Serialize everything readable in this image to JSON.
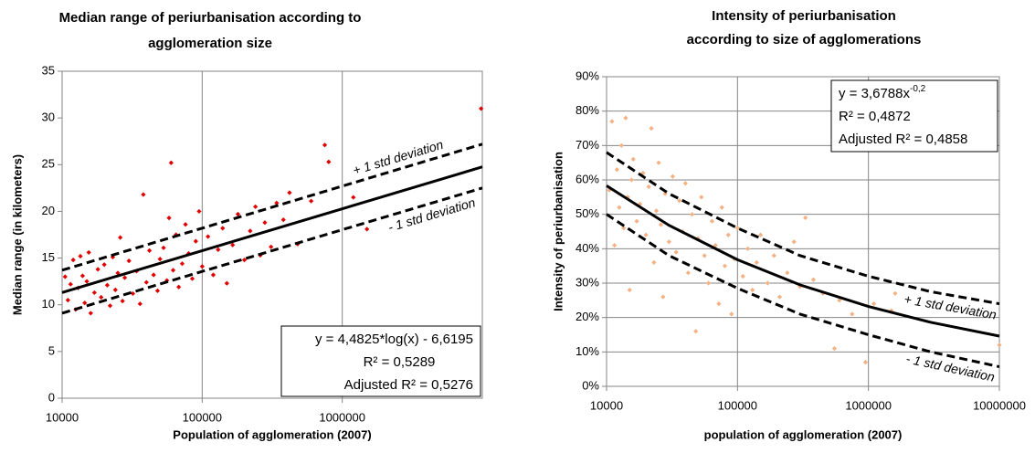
{
  "chart_data": [
    {
      "type": "scatter",
      "title": [
        "Median range of periurbanisation according to",
        "agglomeration size"
      ],
      "x_label": "Population of agglomeration (2007)",
      "y_label": "Median range (in kilometers)",
      "xscale": "log",
      "xlim": [
        10000,
        10000000
      ],
      "xticks": [
        10000,
        100000,
        1000000
      ],
      "ylim": [
        0,
        35
      ],
      "yticks": [
        0,
        5,
        10,
        15,
        20,
        25,
        30,
        35
      ],
      "xgrid": true,
      "ygrid": false,
      "equation": {
        "lines": [
          "y = 4,4825*log(x) - 6,6195",
          "R² = 0,5289",
          "Adjusted R² = 0,5276"
        ]
      },
      "series": [
        {
          "style": "points",
          "color": "#e00000",
          "x": [
            10500,
            11000,
            11500,
            12000,
            12500,
            13000,
            13500,
            14000,
            14500,
            15000,
            15500,
            16000,
            17000,
            18000,
            19000,
            20000,
            21000,
            22000,
            23000,
            24000,
            25000,
            26000,
            27000,
            28000,
            30000,
            32000,
            34000,
            36000,
            38000,
            40000,
            42000,
            45000,
            48000,
            50000,
            53000,
            56000,
            58000,
            60000,
            62000,
            65000,
            68000,
            72000,
            76000,
            80000,
            85000,
            90000,
            95000,
            100000,
            110000,
            120000,
            130000,
            140000,
            150000,
            165000,
            180000,
            200000,
            220000,
            240000,
            260000,
            280000,
            310000,
            340000,
            380000,
            420000,
            480000,
            600000,
            750000,
            800000,
            1200000,
            1500000,
            9800000
          ],
          "values": [
            13,
            10.5,
            12.2,
            14.8,
            9.5,
            11.8,
            15.2,
            13.1,
            10.2,
            12.5,
            15.6,
            9.1,
            11.3,
            13.8,
            10.8,
            14.3,
            12.1,
            9.9,
            15.1,
            11.6,
            13.4,
            17.2,
            10.4,
            12.9,
            14.7,
            11.2,
            13.6,
            10.1,
            21.8,
            12.4,
            15.8,
            13.2,
            11.5,
            14.9,
            16.1,
            12.6,
            19.3,
            25.2,
            13.7,
            17.5,
            11.9,
            14.4,
            18.6,
            15.5,
            12.8,
            16.8,
            20,
            14.1,
            17.3,
            13.2,
            15.9,
            18.2,
            12.3,
            16.4,
            19.7,
            14.8,
            17.9,
            20.5,
            15.3,
            18.8,
            16.2,
            20.9,
            19.1,
            22,
            16.5,
            21.1,
            27.1,
            25.3,
            21.5,
            18.1,
            31
          ]
        },
        {
          "style": "solid",
          "color": "#000000",
          "x": [
            10000,
            10000000
          ],
          "values": [
            11.31,
            24.76
          ]
        },
        {
          "style": "dashed",
          "color": "#000000",
          "name": "+ 1 std deviation",
          "x": [
            10000,
            10000000
          ],
          "values": [
            13.7,
            27.2
          ]
        },
        {
          "style": "dashed",
          "color": "#000000",
          "name": "- 1 std deviation",
          "x": [
            10000,
            10000000
          ],
          "values": [
            9.1,
            22.5
          ]
        }
      ]
    },
    {
      "type": "scatter",
      "title": [
        "Intensity of  periurbanisation",
        "according to size of agglomerations"
      ],
      "x_label": "population of agglomeration (2007)",
      "y_label": "Intensity of periurbanisation",
      "xscale": "log",
      "xlim": [
        10000,
        10000000
      ],
      "xticks": [
        10000,
        100000,
        1000000,
        10000000
      ],
      "ylim": [
        0,
        90
      ],
      "yticks": [
        {
          "value": 0,
          "label": "0%"
        },
        {
          "value": 10,
          "label": "10%"
        },
        {
          "value": 20,
          "label": "20%"
        },
        {
          "value": 30,
          "label": "30%"
        },
        {
          "value": 40,
          "label": "40%"
        },
        {
          "value": 50,
          "label": "50%"
        },
        {
          "value": 60,
          "label": "60%"
        },
        {
          "value": 70,
          "label": "70%"
        },
        {
          "value": 80,
          "label": "80%"
        },
        {
          "value": 90,
          "label": "90%"
        }
      ],
      "xgrid": true,
      "ygrid": true,
      "equation": {
        "base": "y = 3,6788x",
        "exponent": "-0,2",
        "lines": [
          "R² = 0,4872",
          "Adjusted R² = 0,4858"
        ]
      },
      "series": [
        {
          "style": "points",
          "color": "#f4b183",
          "x": [
            10500,
            11000,
            11500,
            12000,
            12500,
            13000,
            13500,
            14000,
            14500,
            15000,
            15500,
            16000,
            17000,
            18000,
            19000,
            20000,
            21000,
            22000,
            23000,
            24000,
            25000,
            26000,
            27000,
            28000,
            30000,
            32000,
            34000,
            36000,
            38000,
            40000,
            42000,
            45000,
            48000,
            50000,
            53000,
            56000,
            60000,
            64000,
            68000,
            72000,
            76000,
            80000,
            85000,
            90000,
            95000,
            100000,
            110000,
            120000,
            130000,
            140000,
            150000,
            170000,
            190000,
            210000,
            240000,
            270000,
            300000,
            330000,
            380000,
            450000,
            550000,
            600000,
            750000,
            950000,
            1100000,
            1500000,
            1600000,
            10000000
          ],
          "values": [
            57,
            77,
            41,
            63,
            52,
            70,
            46,
            78,
            55,
            28,
            60,
            66,
            48,
            53,
            62,
            44,
            58,
            75,
            36,
            51,
            65,
            47,
            26,
            56,
            42,
            61,
            39,
            54,
            45,
            59,
            33,
            50,
            16,
            43,
            55,
            38,
            30,
            48,
            41,
            24,
            52,
            35,
            44,
            21,
            37,
            46,
            32,
            40,
            28,
            36,
            44,
            30,
            38,
            26,
            33,
            42,
            29,
            49,
            31,
            27,
            11,
            25,
            21,
            7,
            24,
            22,
            27,
            12
          ]
        },
        {
          "style": "solid",
          "color": "#000000",
          "x": [
            10000,
            30000,
            100000,
            300000,
            1000000,
            3000000,
            10000000
          ],
          "values": [
            58.3,
            46.8,
            36.8,
            29.5,
            23.2,
            18.6,
            14.6
          ]
        },
        {
          "style": "dashed",
          "color": "#000000",
          "name": "+ 1 std deviation",
          "x": [
            10000,
            30000,
            100000,
            300000,
            1000000,
            3000000,
            10000000
          ],
          "values": [
            68,
            56,
            46,
            38,
            32,
            27.5,
            24
          ]
        },
        {
          "style": "dashed",
          "color": "#000000",
          "name": "- 1 std deviation",
          "x": [
            10000,
            30000,
            100000,
            300000,
            1000000,
            3000000,
            10000000
          ],
          "values": [
            50,
            38,
            28.5,
            21,
            15,
            10,
            5.7
          ]
        }
      ]
    }
  ]
}
